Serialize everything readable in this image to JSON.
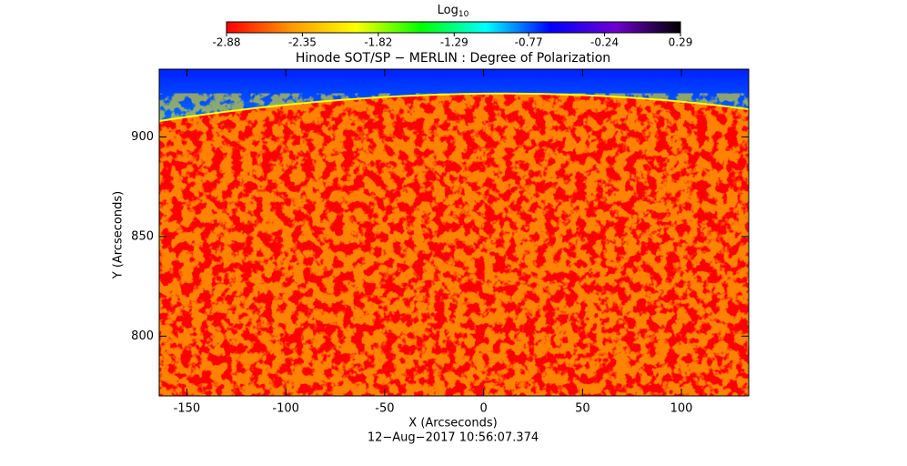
{
  "chart_data": {
    "type": "heatmap",
    "title": "Hinode SOT/SP − MERLIN : Degree of Polarization",
    "xlabel": "X (Arcseconds)",
    "ylabel": "Y (Arcseconds)",
    "footer": "12−Aug−2017 10:56:07.374",
    "colorbar_label": "Log",
    "colorbar_label_sub": "10",
    "colorbar_lim": [
      -2.88,
      0.29
    ],
    "colorbar_ticks": [
      -2.88,
      -2.35,
      -1.82,
      -1.29,
      -0.77,
      -0.24,
      0.29
    ],
    "colormap": [
      "#ff0000",
      "#ff9900",
      "#ffff00",
      "#00ff00",
      "#00ffff",
      "#0000ff",
      "#7000d0",
      "#000000"
    ],
    "xlim": [
      -164,
      134
    ],
    "ylim": [
      770,
      934
    ],
    "xticks": [
      -150,
      -100,
      -50,
      0,
      50,
      100
    ],
    "yticks": [
      800,
      850,
      900
    ]
  }
}
